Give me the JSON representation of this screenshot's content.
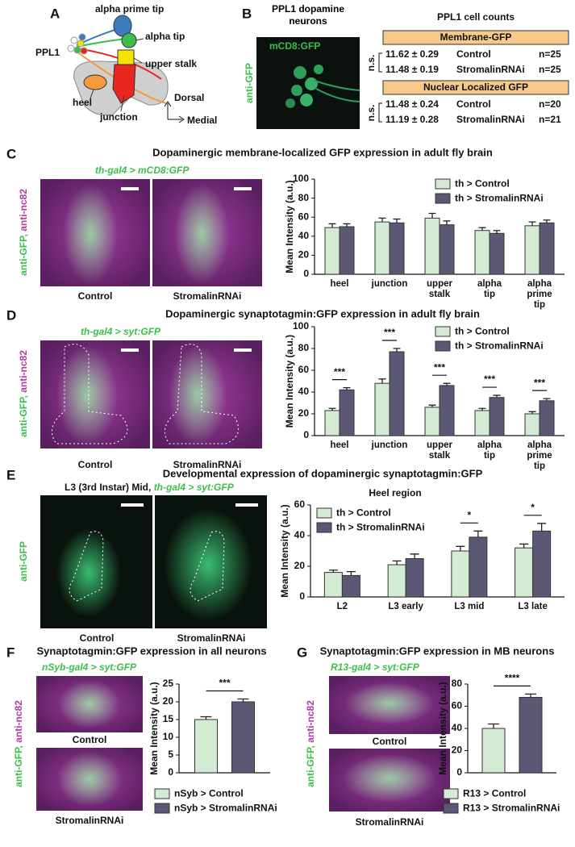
{
  "panel_a": {
    "letter": "A",
    "labels": {
      "ppl1": "PPL1",
      "alpha_prime_tip": "alpha prime tip",
      "alpha_tip": "alpha tip",
      "upper_stalk": "upper stalk",
      "heel": "heel",
      "junction": "junction",
      "dorsal": "Dorsal",
      "medial": "Medial"
    }
  },
  "panel_b": {
    "letter": "B",
    "image_title": "PPL1 dopamine neurons",
    "image_label": "mCD8:GFP",
    "stain": "anti-GFP",
    "table": {
      "title": "PPL1 cell counts",
      "sections": [
        {
          "header": "Membrane-GFP",
          "significance": "n.s.",
          "rows": [
            [
              "11.62 ± 0.29",
              "Control",
              "n=25"
            ],
            [
              "11.48 ± 0.19",
              "StromalinRNAi",
              "n=25"
            ]
          ]
        },
        {
          "header": "Nuclear Localized GFP",
          "significance": "n.s.",
          "rows": [
            [
              "11.48 ± 0.24",
              "Control",
              "n=20"
            ],
            [
              "11.19 ± 0.28",
              "StromalinRNAi",
              "n=21"
            ]
          ]
        }
      ]
    }
  },
  "panel_c": {
    "letter": "C",
    "title": "Dopaminergic membrane-localized GFP expression in adult fly brain",
    "genotype": "th-gal4 > mCD8:GFP",
    "stain": [
      "anti-GFP,",
      "anti-nc82"
    ],
    "image_labels": [
      "Control",
      "StromalinRNAi"
    ]
  },
  "panel_d": {
    "letter": "D",
    "title": "Dopaminergic synaptotagmin:GFP expression in adult fly brain",
    "genotype": "th-gal4 > syt:GFP",
    "stain": [
      "anti-GFP,",
      "anti-nc82"
    ],
    "image_labels": [
      "Control",
      "StromalinRNAi"
    ]
  },
  "panel_e": {
    "letter": "E",
    "title": "Developmental expression of dopaminergic synaptotagmin:GFP",
    "stage": "L3 (3rd Instar) Mid,",
    "genotype": "th-gal4 > syt:GFP",
    "stain": "anti-GFP",
    "image_labels": [
      "Control",
      "StromalinRNAi"
    ]
  },
  "panel_f": {
    "letter": "F",
    "title": "Synaptotagmin:GFP expression in all neurons",
    "genotype": "nSyb-gal4 > syt:GFP",
    "stain": [
      "anti-GFP,",
      "anti-nc82"
    ],
    "image_labels": [
      "Control",
      "StromalinRNAi"
    ]
  },
  "panel_g": {
    "letter": "G",
    "title": "Synaptotagmin:GFP expression in MB neurons",
    "genotype": "R13-gal4 > syt:GFP",
    "stain": [
      "anti-GFP,",
      "anti-nc82"
    ],
    "image_labels": [
      "Control",
      "StromalinRNAi"
    ]
  },
  "chart_data": [
    {
      "type": "bar",
      "ylabel": "Mean Intensity (a.u.)",
      "ylim": [
        0,
        100
      ],
      "yticks": [
        0,
        20,
        40,
        60,
        80,
        100
      ],
      "legend_position": "top-right",
      "categories": [
        "heel",
        "junction",
        "upper stalk",
        "alpha tip",
        "alpha prime tip"
      ],
      "series": [
        {
          "name": "th > Control",
          "color": "#d3ebd3",
          "values": [
            49,
            55,
            59,
            46,
            51
          ],
          "errors": [
            4,
            4,
            5,
            3,
            4
          ]
        },
        {
          "name": "th > StromalinRNAi",
          "color": "#5b5876",
          "values": [
            50,
            54,
            52,
            43,
            54
          ],
          "errors": [
            3,
            4,
            4,
            3,
            3
          ]
        }
      ]
    },
    {
      "type": "bar",
      "ylabel": "Mean Intensity (a.u.)",
      "ylim": [
        0,
        100
      ],
      "yticks": [
        0,
        20,
        40,
        60,
        80,
        100
      ],
      "legend_position": "top-right",
      "categories": [
        "heel",
        "junction",
        "upper stalk",
        "alpha tip",
        "alpha prime tip"
      ],
      "significance": [
        "***",
        "***",
        "***",
        "***",
        "***"
      ],
      "series": [
        {
          "name": "th > Control",
          "color": "#d3ebd3",
          "values": [
            23,
            48,
            26,
            23,
            20
          ],
          "errors": [
            2,
            4,
            2,
            2,
            2
          ]
        },
        {
          "name": "th > StromalinRNAi",
          "color": "#5b5876",
          "values": [
            42,
            77,
            46,
            35,
            32
          ],
          "errors": [
            2,
            3,
            2,
            2,
            2
          ]
        }
      ]
    },
    {
      "type": "bar",
      "subtitle": "Heel region",
      "ylabel": "Mean Intensity (a.u.)",
      "ylim": [
        0,
        60
      ],
      "yticks": [
        0,
        20,
        40,
        60
      ],
      "legend_position": "top-left",
      "categories": [
        "L2",
        "L3 early",
        "L3 mid",
        "L3 late"
      ],
      "significance": [
        null,
        null,
        "*",
        "*"
      ],
      "series": [
        {
          "name": "th > Control",
          "color": "#d3ebd3",
          "values": [
            16,
            21,
            30,
            32
          ],
          "errors": [
            1.5,
            2.5,
            3,
            2.5
          ]
        },
        {
          "name": "th > StromalinRNAi",
          "color": "#5b5876",
          "values": [
            14,
            25,
            39,
            43
          ],
          "errors": [
            2.5,
            3,
            4,
            5
          ]
        }
      ]
    },
    {
      "type": "bar",
      "ylabel": "Mean Intensity (a.u.)",
      "ylim": [
        0,
        25
      ],
      "yticks": [
        0,
        5,
        10,
        15,
        20,
        25
      ],
      "legend_position": "bottom",
      "categories": [
        null
      ],
      "significance": [
        "***"
      ],
      "series": [
        {
          "name": "nSyb > Control",
          "color": "#d3ebd3",
          "values": [
            15
          ],
          "errors": [
            0.8
          ]
        },
        {
          "name": "nSyb > StromalinRNAi",
          "color": "#5b5876",
          "values": [
            20
          ],
          "errors": [
            0.8
          ]
        }
      ]
    },
    {
      "type": "bar",
      "ylabel": "Mean Intensity (a.u.)",
      "ylim": [
        0,
        80
      ],
      "yticks": [
        0,
        20,
        40,
        60,
        80
      ],
      "legend_position": "bottom",
      "categories": [
        null
      ],
      "significance": [
        "****"
      ],
      "series": [
        {
          "name": "R13 > Control",
          "color": "#d3ebd3",
          "values": [
            40
          ],
          "errors": [
            4
          ]
        },
        {
          "name": "R13 > StromalinRNAi",
          "color": "#5b5876",
          "values": [
            68
          ],
          "errors": [
            3
          ]
        }
      ]
    }
  ]
}
